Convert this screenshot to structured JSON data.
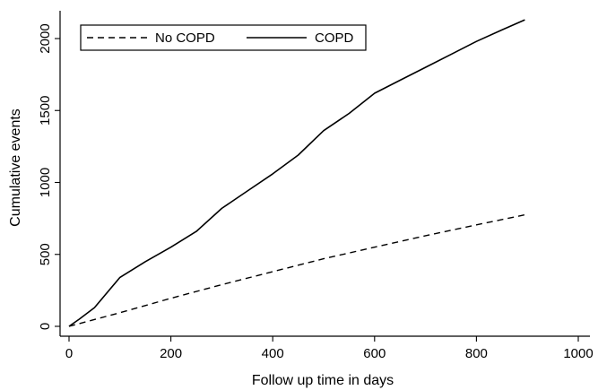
{
  "chart_data": {
    "type": "line",
    "xlabel": "Follow up time in days",
    "ylabel": "Cumulative events",
    "xlim": [
      0,
      1000
    ],
    "ylim": [
      0,
      2150
    ],
    "x_ticks": [
      0,
      200,
      400,
      600,
      800,
      1000
    ],
    "y_ticks": [
      0,
      500,
      1000,
      1500,
      2000
    ],
    "grid": false,
    "legend": {
      "placement": "top-left",
      "boxed": true
    },
    "series": [
      {
        "name": "No COPD",
        "style": "dashed",
        "color": "#000000",
        "points": [
          [
            0,
            0
          ],
          [
            100,
            95
          ],
          [
            200,
            195
          ],
          [
            300,
            290
          ],
          [
            400,
            380
          ],
          [
            500,
            470
          ],
          [
            600,
            550
          ],
          [
            700,
            630
          ],
          [
            800,
            705
          ],
          [
            895,
            775
          ]
        ]
      },
      {
        "name": "COPD",
        "style": "solid",
        "color": "#000000",
        "points": [
          [
            0,
            0
          ],
          [
            20,
            50
          ],
          [
            50,
            130
          ],
          [
            100,
            340
          ],
          [
            150,
            450
          ],
          [
            200,
            550
          ],
          [
            250,
            660
          ],
          [
            300,
            820
          ],
          [
            350,
            940
          ],
          [
            400,
            1060
          ],
          [
            450,
            1190
          ],
          [
            500,
            1360
          ],
          [
            550,
            1480
          ],
          [
            600,
            1620
          ],
          [
            650,
            1710
          ],
          [
            700,
            1800
          ],
          [
            750,
            1890
          ],
          [
            800,
            1980
          ],
          [
            850,
            2060
          ],
          [
            895,
            2130
          ]
        ]
      }
    ]
  }
}
